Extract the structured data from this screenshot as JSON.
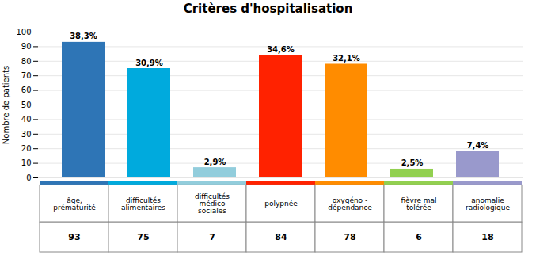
{
  "chart_data": {
    "type": "bar",
    "title": "Critères d'hospitalisation",
    "ylabel": "Nombre de patients",
    "categories": [
      "âge,\nprématurité",
      "difficultés\nalimentaires",
      "difficultés\nmédico\nsociales",
      "polypnée",
      "oxygéno -\ndépendance",
      "fièvre mal\ntolérée",
      "anomalie\nradiologique"
    ],
    "values": [
      93,
      75,
      7,
      84,
      78,
      6,
      18
    ],
    "bar_labels": [
      "38,3%",
      "30,9%",
      "2,9%",
      "34,6%",
      "32,1%",
      "2,5%",
      "7,4%"
    ],
    "counts": [
      93,
      75,
      7,
      84,
      78,
      6,
      18
    ],
    "colors": [
      "#2E75B6",
      "#00AADD",
      "#92CDDC",
      "#FF2200",
      "#FF8C00",
      "#92D050",
      "#9999CC"
    ],
    "ylim": [
      0,
      100
    ],
    "yticks": [
      0,
      10,
      20,
      30,
      40,
      50,
      60,
      70,
      80,
      90,
      100
    ],
    "grid": true
  }
}
